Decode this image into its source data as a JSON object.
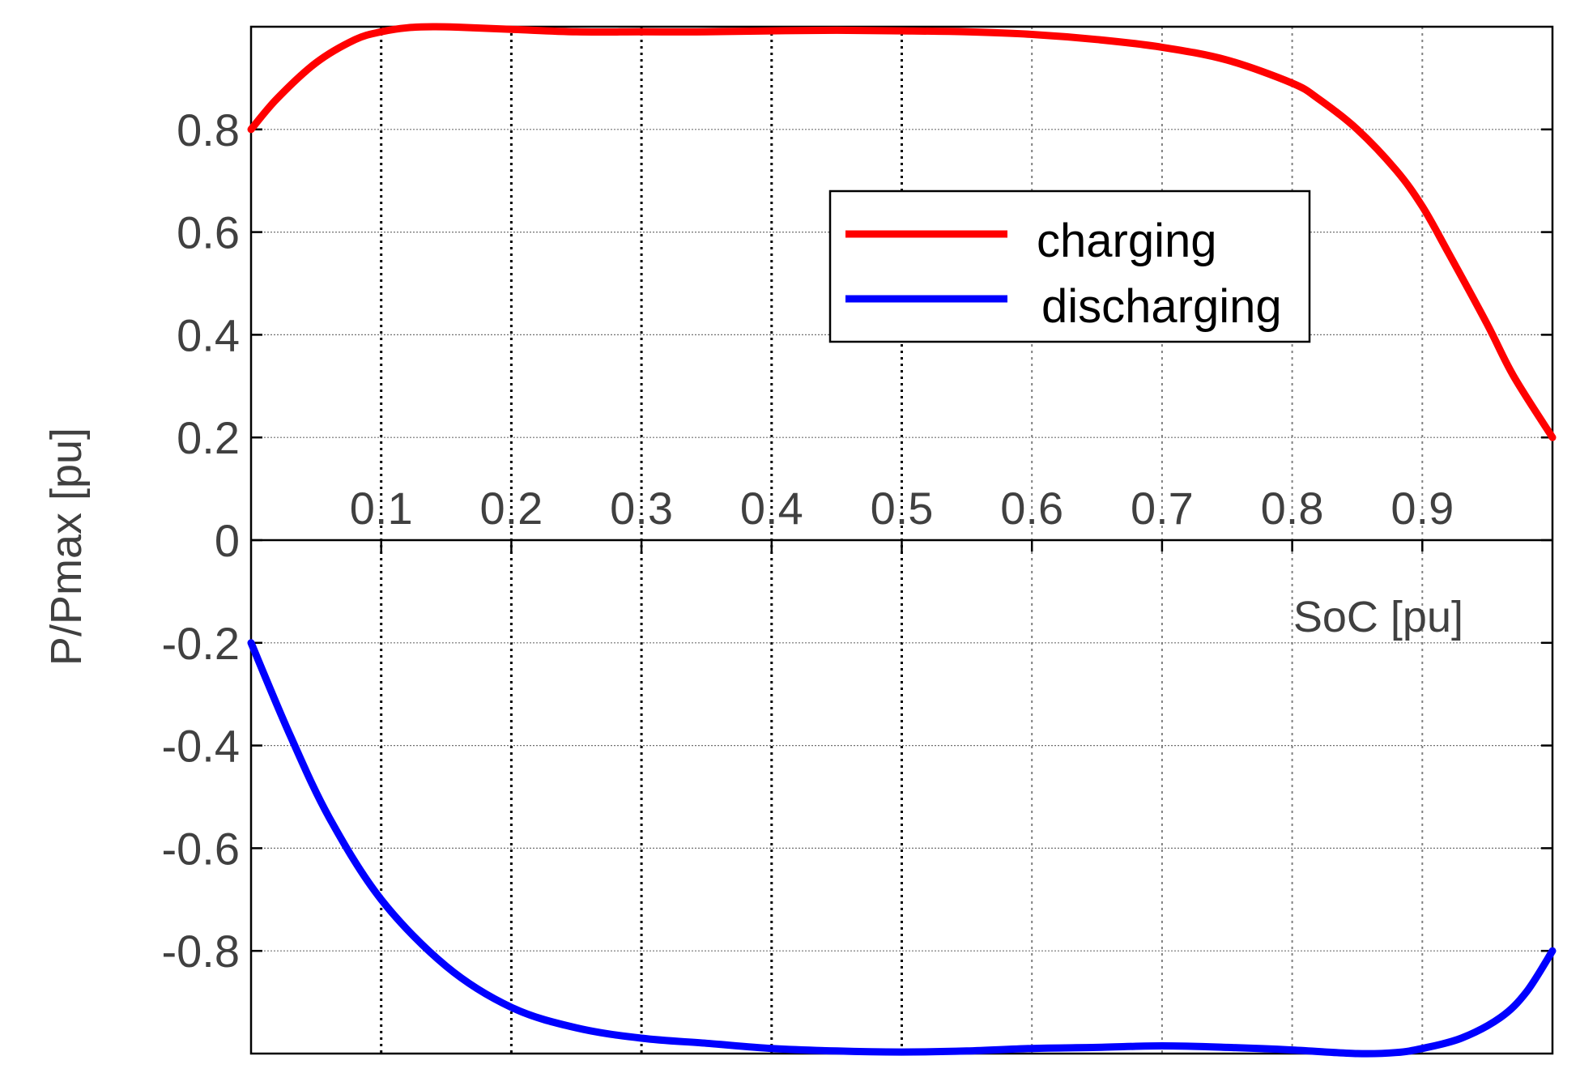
{
  "chart_data": {
    "type": "line",
    "xlabel": "SoC [pu]",
    "ylabel": "P/Pmax [pu]",
    "xlim": [
      0,
      1
    ],
    "ylim": [
      -1,
      1
    ],
    "x_ticks": [
      {
        "value": 0.1,
        "label": "0.1"
      },
      {
        "value": 0.2,
        "label": "0.2"
      },
      {
        "value": 0.3,
        "label": "0.3"
      },
      {
        "value": 0.4,
        "label": "0.4"
      },
      {
        "value": 0.5,
        "label": "0.5"
      },
      {
        "value": 0.6,
        "label": "0.6"
      },
      {
        "value": 0.7,
        "label": "0.7"
      },
      {
        "value": 0.8,
        "label": "0.8"
      },
      {
        "value": 0.9,
        "label": "0.9"
      }
    ],
    "y_ticks": [
      {
        "value": 0.8,
        "label": "0.8"
      },
      {
        "value": 0.6,
        "label": "0.6"
      },
      {
        "value": 0.4,
        "label": "0.4"
      },
      {
        "value": 0.2,
        "label": "0.2"
      },
      {
        "value": 0,
        "label": "0"
      },
      {
        "value": -0.2,
        "label": "-0.2"
      },
      {
        "value": -0.4,
        "label": "-0.4"
      },
      {
        "value": -0.6,
        "label": "-0.6"
      },
      {
        "value": -0.8,
        "label": "-0.8"
      }
    ],
    "grid": true,
    "legend_position": "top-right",
    "series": [
      {
        "name": "charging",
        "color": "#ff0000",
        "x": [
          0,
          0.02,
          0.05,
          0.08,
          0.1,
          0.12,
          0.14,
          0.16,
          0.2,
          0.25,
          0.3,
          0.35,
          0.4,
          0.45,
          0.5,
          0.55,
          0.6,
          0.65,
          0.7,
          0.75,
          0.8,
          0.82,
          0.85,
          0.88,
          0.9,
          0.92,
          0.95,
          0.97,
          1.0
        ],
        "y": [
          0.8,
          0.86,
          0.93,
          0.975,
          0.99,
          0.998,
          1.0,
          0.999,
          0.995,
          0.99,
          0.99,
          0.99,
          0.992,
          0.993,
          0.992,
          0.99,
          0.985,
          0.975,
          0.96,
          0.935,
          0.89,
          0.86,
          0.8,
          0.72,
          0.65,
          0.56,
          0.42,
          0.32,
          0.2
        ]
      },
      {
        "name": "discharging",
        "color": "#0000ff",
        "x": [
          0,
          0.03,
          0.06,
          0.1,
          0.15,
          0.2,
          0.25,
          0.3,
          0.35,
          0.4,
          0.45,
          0.5,
          0.55,
          0.6,
          0.65,
          0.7,
          0.75,
          0.8,
          0.85,
          0.88,
          0.9,
          0.93,
          0.96,
          0.98,
          1.0
        ],
        "y": [
          -0.2,
          -0.38,
          -0.54,
          -0.7,
          -0.83,
          -0.91,
          -0.95,
          -0.97,
          -0.98,
          -0.99,
          -0.995,
          -0.997,
          -0.995,
          -0.99,
          -0.988,
          -0.985,
          -0.988,
          -0.993,
          -1.0,
          -0.998,
          -0.99,
          -0.97,
          -0.93,
          -0.88,
          -0.8
        ]
      }
    ]
  }
}
